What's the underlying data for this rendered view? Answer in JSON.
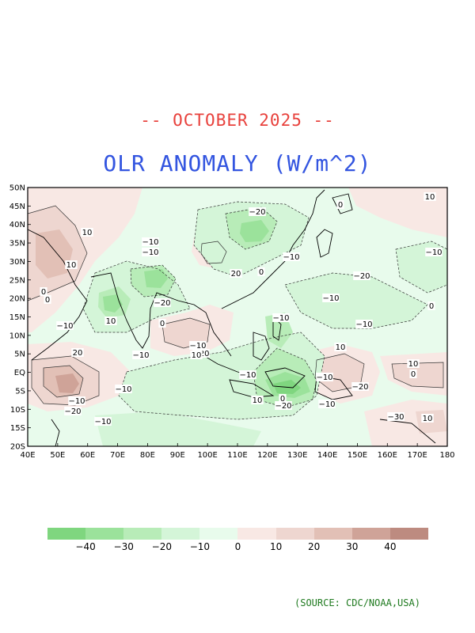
{
  "header": {
    "period": "-- OCTOBER 2025 --",
    "title": "OLR ANOMALY (W/m^2)"
  },
  "map": {
    "lat_labels": [
      "50N",
      "45N",
      "40N",
      "35N",
      "30N",
      "25N",
      "20N",
      "15N",
      "10N",
      "5N",
      "EQ",
      "5S",
      "10S",
      "15S",
      "20S"
    ],
    "lon_labels": [
      "40E",
      "50E",
      "60E",
      "70E",
      "80E",
      "90E",
      "100E",
      "110E",
      "120E",
      "130E",
      "140E",
      "150E",
      "160E",
      "170E",
      "180"
    ],
    "contour_labels": [
      "10",
      "0",
      "-20",
      "10",
      "-10",
      "-10",
      "-10",
      "-10",
      "20",
      "10",
      "-20",
      "0",
      "-20",
      "-10",
      "0",
      "10",
      "-10",
      "-10",
      "-10",
      "-10",
      "-10",
      "-20",
      "20",
      "-10",
      "10",
      "-10",
      "0",
      "-10",
      "-10",
      "10",
      "0",
      "-20",
      "-20",
      "-10",
      "-30",
      "-10",
      "10",
      "0",
      "-20",
      "10",
      "0",
      "10",
      "0"
    ],
    "colors": {
      "n40": "#7fd67f",
      "n30": "#9be29b",
      "n20": "#b8ecb8",
      "n10": "#d4f5d8",
      "n0": "#e8fbec",
      "p0": "#f8e8e4",
      "p10": "#eed6d0",
      "p20": "#e2c0b6",
      "p30": "#cfa398",
      "p40": "#bd8b80"
    }
  },
  "colorbar": {
    "labels": [
      "-40",
      "-30",
      "-20",
      "-10",
      "0",
      "10",
      "20",
      "30",
      "40"
    ],
    "colors": [
      "#7fd67f",
      "#9be29b",
      "#b8ecb8",
      "#d4f5d8",
      "#e8fbec",
      "#f8e8e4",
      "#eed6d0",
      "#e2c0b6",
      "#cfa398",
      "#bd8b80"
    ]
  },
  "footer": {
    "source": "(SOURCE: CDC/NOAA,USA)"
  }
}
